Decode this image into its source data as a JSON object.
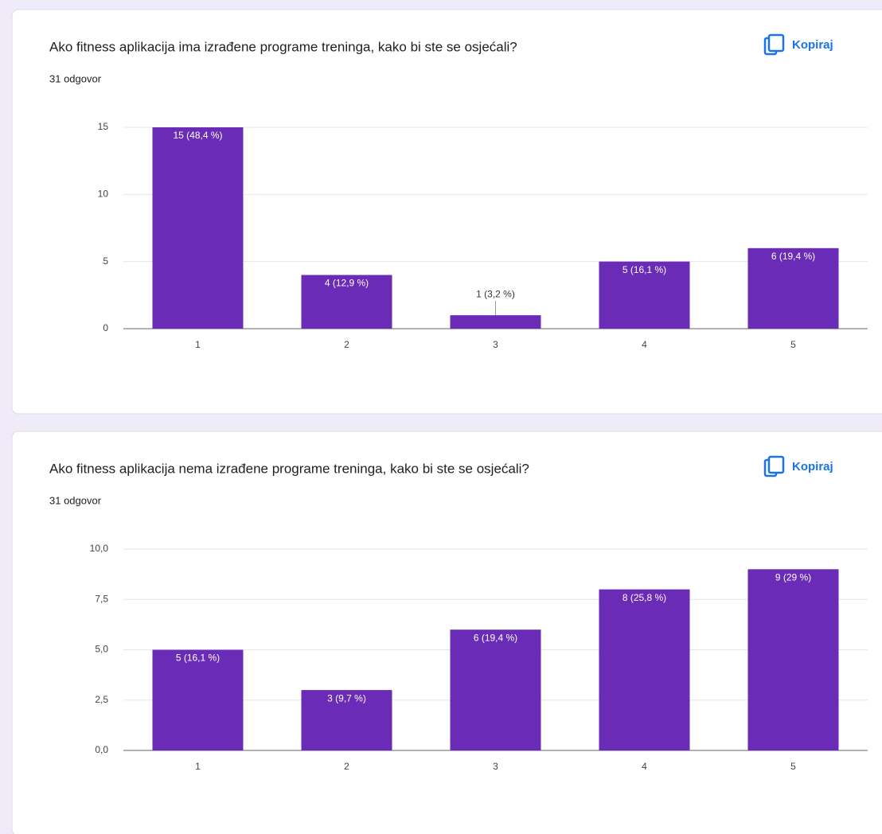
{
  "chart_data": [
    {
      "type": "bar",
      "title": "Ako fitness aplikacija ima izrađene programe treninga, kako bi ste se osjećali?",
      "subtitle": "31 odgovor",
      "action": "Kopiraj",
      "categories": [
        "1",
        "2",
        "3",
        "4",
        "5"
      ],
      "values": [
        15,
        4,
        1,
        5,
        6
      ],
      "value_labels": [
        "15 (48,4 %)",
        "4 (12,9 %)",
        "1 (3,2 %)",
        "5 (16,1 %)",
        "6 (19,4 %)"
      ],
      "color": "#6a2bb6",
      "ylim": [
        0,
        15
      ],
      "yticks": [
        0,
        5,
        10,
        15
      ],
      "grid": true
    },
    {
      "type": "bar",
      "title": "Ako fitness aplikacija nema izrađene programe treninga, kako bi ste se osjećali?",
      "subtitle": "31 odgovor",
      "action": "Kopiraj",
      "categories": [
        "1",
        "2",
        "3",
        "4",
        "5"
      ],
      "values": [
        5,
        3,
        6,
        8,
        9
      ],
      "value_labels": [
        "5 (16,1 %)",
        "3 (9,7 %)",
        "6 (19,4 %)",
        "8 (25,8 %)",
        "9 (29 %)"
      ],
      "color": "#6a2bb6",
      "ylim": [
        0,
        10
      ],
      "yticks": [
        {
          "value": 0,
          "label": "0,0"
        },
        {
          "value": 2.5,
          "label": "2,5"
        },
        {
          "value": 5,
          "label": "5,0"
        },
        {
          "value": 7.5,
          "label": "7,5"
        },
        {
          "value": 10,
          "label": "10,0"
        }
      ],
      "grid": true
    }
  ]
}
